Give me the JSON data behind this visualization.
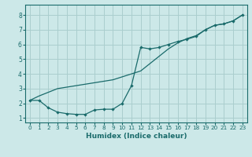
{
  "xlabel": "Humidex (Indice chaleur)",
  "background_color": "#cce8e8",
  "grid_color": "#aacece",
  "line_color": "#1a6b6b",
  "xlim": [
    -0.5,
    23.5
  ],
  "ylim": [
    0.7,
    8.7
  ],
  "xticks": [
    0,
    1,
    2,
    3,
    4,
    5,
    6,
    7,
    8,
    9,
    10,
    11,
    12,
    13,
    14,
    15,
    16,
    17,
    18,
    19,
    20,
    21,
    22,
    23
  ],
  "yticks": [
    1,
    2,
    3,
    4,
    5,
    6,
    7,
    8
  ],
  "line1_x": [
    0,
    1,
    2,
    3,
    4,
    5,
    6,
    7,
    8,
    9,
    10,
    11,
    12,
    13,
    14,
    15,
    16,
    17,
    18,
    19,
    20,
    21,
    22,
    23
  ],
  "line1_y": [
    2.2,
    2.2,
    1.7,
    1.4,
    1.3,
    1.25,
    1.25,
    1.55,
    1.6,
    1.6,
    2.0,
    3.2,
    5.8,
    5.7,
    5.8,
    6.0,
    6.2,
    6.35,
    6.55,
    7.0,
    7.3,
    7.4,
    7.6,
    8.0
  ],
  "line2_x": [
    0,
    1,
    2,
    3,
    4,
    5,
    6,
    7,
    8,
    9,
    10,
    11,
    12,
    13,
    14,
    15,
    16,
    17,
    18,
    19,
    20,
    21,
    22,
    23
  ],
  "line2_y": [
    2.2,
    2.5,
    2.75,
    3.0,
    3.1,
    3.2,
    3.3,
    3.4,
    3.5,
    3.6,
    3.8,
    4.0,
    4.2,
    4.7,
    5.2,
    5.7,
    6.1,
    6.4,
    6.6,
    7.0,
    7.3,
    7.4,
    7.6,
    8.0
  ]
}
